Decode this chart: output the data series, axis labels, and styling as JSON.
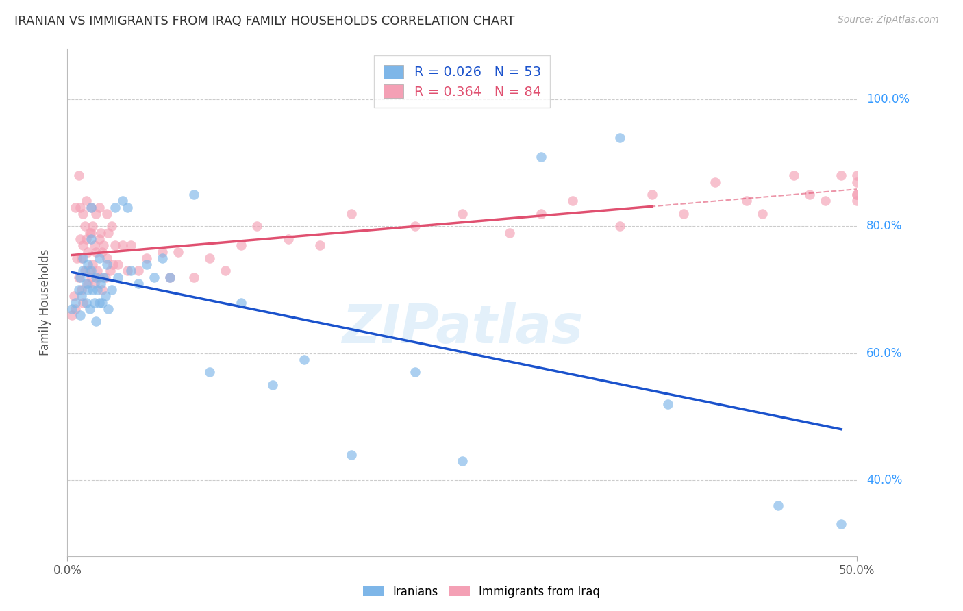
{
  "title": "IRANIAN VS IMMIGRANTS FROM IRAQ FAMILY HOUSEHOLDS CORRELATION CHART",
  "source": "Source: ZipAtlas.com",
  "ylabel": "Family Households",
  "right_yticks": [
    "100.0%",
    "80.0%",
    "60.0%",
    "40.0%"
  ],
  "right_ytick_vals": [
    1.0,
    0.8,
    0.6,
    0.4
  ],
  "xlim": [
    0.0,
    0.5
  ],
  "ylim": [
    0.28,
    1.08
  ],
  "background_color": "#ffffff",
  "grid_color": "#cccccc",
  "iranians_color": "#7EB6E8",
  "iraq_color": "#F4A0B5",
  "iranians_line_color": "#1a52cc",
  "iraq_line_color": "#E05070",
  "legend_R_iranians": "0.026",
  "legend_N_iranians": "53",
  "legend_R_iraq": "0.364",
  "legend_N_iraq": "84",
  "watermark": "ZIPatlas",
  "iranians_x": [
    0.003,
    0.005,
    0.007,
    0.008,
    0.008,
    0.009,
    0.01,
    0.01,
    0.012,
    0.012,
    0.013,
    0.013,
    0.014,
    0.015,
    0.015,
    0.015,
    0.016,
    0.017,
    0.018,
    0.018,
    0.019,
    0.02,
    0.02,
    0.021,
    0.022,
    0.023,
    0.024,
    0.025,
    0.026,
    0.028,
    0.03,
    0.032,
    0.035,
    0.038,
    0.04,
    0.045,
    0.05,
    0.055,
    0.06,
    0.065,
    0.08,
    0.09,
    0.11,
    0.13,
    0.15,
    0.18,
    0.22,
    0.25,
    0.3,
    0.35,
    0.38,
    0.45,
    0.49
  ],
  "iranians_y": [
    0.67,
    0.68,
    0.7,
    0.66,
    0.72,
    0.69,
    0.73,
    0.75,
    0.71,
    0.68,
    0.74,
    0.7,
    0.67,
    0.83,
    0.78,
    0.73,
    0.7,
    0.68,
    0.72,
    0.65,
    0.7,
    0.75,
    0.68,
    0.71,
    0.68,
    0.72,
    0.69,
    0.74,
    0.67,
    0.7,
    0.83,
    0.72,
    0.84,
    0.83,
    0.73,
    0.71,
    0.74,
    0.72,
    0.75,
    0.72,
    0.85,
    0.57,
    0.68,
    0.55,
    0.59,
    0.44,
    0.57,
    0.43,
    0.91,
    0.94,
    0.52,
    0.36,
    0.33
  ],
  "iraq_x": [
    0.003,
    0.004,
    0.005,
    0.005,
    0.006,
    0.007,
    0.007,
    0.008,
    0.008,
    0.009,
    0.009,
    0.01,
    0.01,
    0.01,
    0.011,
    0.011,
    0.012,
    0.012,
    0.013,
    0.013,
    0.014,
    0.014,
    0.015,
    0.015,
    0.015,
    0.016,
    0.016,
    0.017,
    0.017,
    0.018,
    0.018,
    0.019,
    0.02,
    0.02,
    0.02,
    0.021,
    0.022,
    0.022,
    0.023,
    0.024,
    0.025,
    0.025,
    0.026,
    0.027,
    0.028,
    0.029,
    0.03,
    0.032,
    0.035,
    0.038,
    0.04,
    0.045,
    0.05,
    0.06,
    0.065,
    0.07,
    0.08,
    0.09,
    0.1,
    0.11,
    0.12,
    0.14,
    0.16,
    0.18,
    0.22,
    0.25,
    0.28,
    0.3,
    0.32,
    0.35,
    0.37,
    0.39,
    0.41,
    0.43,
    0.44,
    0.46,
    0.47,
    0.48,
    0.49,
    0.5,
    0.5,
    0.5,
    0.5,
    0.5
  ],
  "iraq_y": [
    0.66,
    0.69,
    0.83,
    0.67,
    0.75,
    0.88,
    0.72,
    0.83,
    0.78,
    0.75,
    0.7,
    0.82,
    0.77,
    0.68,
    0.8,
    0.73,
    0.84,
    0.78,
    0.76,
    0.71,
    0.79,
    0.73,
    0.83,
    0.79,
    0.72,
    0.8,
    0.74,
    0.77,
    0.71,
    0.82,
    0.76,
    0.73,
    0.83,
    0.78,
    0.72,
    0.79,
    0.76,
    0.7,
    0.77,
    0.72,
    0.82,
    0.75,
    0.79,
    0.73,
    0.8,
    0.74,
    0.77,
    0.74,
    0.77,
    0.73,
    0.77,
    0.73,
    0.75,
    0.76,
    0.72,
    0.76,
    0.72,
    0.75,
    0.73,
    0.77,
    0.8,
    0.78,
    0.77,
    0.82,
    0.8,
    0.82,
    0.79,
    0.82,
    0.84,
    0.8,
    0.85,
    0.82,
    0.87,
    0.84,
    0.82,
    0.88,
    0.85,
    0.84,
    0.88,
    0.85,
    0.87,
    0.84,
    0.88,
    0.85
  ]
}
